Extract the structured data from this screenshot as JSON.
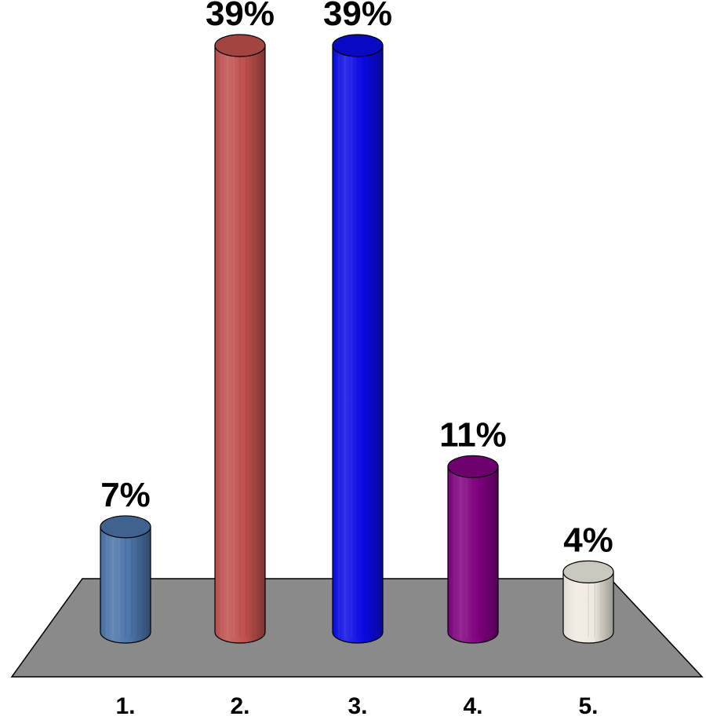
{
  "chart_data": {
    "type": "bar",
    "categories": [
      "1.",
      "2.",
      "3.",
      "4.",
      "5."
    ],
    "values": [
      7,
      39,
      39,
      11,
      4
    ],
    "value_labels": [
      "7%",
      "39%",
      "39%",
      "11%",
      "4%"
    ],
    "colors": [
      "#4a73a8",
      "#c0504d",
      "#0a0ae6",
      "#800080",
      "#eeeae0"
    ],
    "floor_color": "#8a8a8a",
    "ylim": [
      0,
      39
    ],
    "title": "",
    "xlabel": "",
    "ylabel": "",
    "grid": false,
    "legend": "none"
  }
}
